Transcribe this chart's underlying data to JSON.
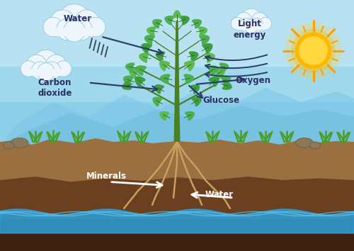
{
  "sky_top": "#A8DCF0",
  "sky_mid": "#7ECBEB",
  "sky_bot": "#5BB8E0",
  "wave1_color": "#6EC4E8",
  "wave2_color": "#5AAED8",
  "ground_top": "#9B7040",
  "ground_mid": "#7A5228",
  "ground_bot": "#5C3A18",
  "water_fill": "#3BAEE8",
  "water_line": "#5DC8F0",
  "trunk_color": "#4A8C28",
  "leaf_dark": "#3A7A18",
  "leaf_mid": "#4CAF50",
  "leaf_light": "#5DBB40",
  "root_color": "#C8A060",
  "grass_color": "#48A030",
  "rock_color": "#9A8868",
  "sun_outer": "#FFC000",
  "sun_inner": "#FFE040",
  "sun_ray": "#FF9800",
  "cloud_fill": "#EEF6FC",
  "cloud_edge": "#B8D8EC",
  "rain_color": "#445566",
  "arrow_dark": "#2C3E6A",
  "arrow_white": "#FFFFFF",
  "text_dark": "#2C3060",
  "text_white": "#FFFFFF",
  "labels": {
    "water_top": "Water",
    "carbon_dioxide": "Carbon\ndioxide",
    "light_energy": "Light\nenergy",
    "oxygen": "Oxygen",
    "glucose": "Glucose",
    "minerals": "Minerals",
    "water_bottom": "Water"
  },
  "figsize": [
    5.0,
    3.54
  ],
  "dpi": 100
}
